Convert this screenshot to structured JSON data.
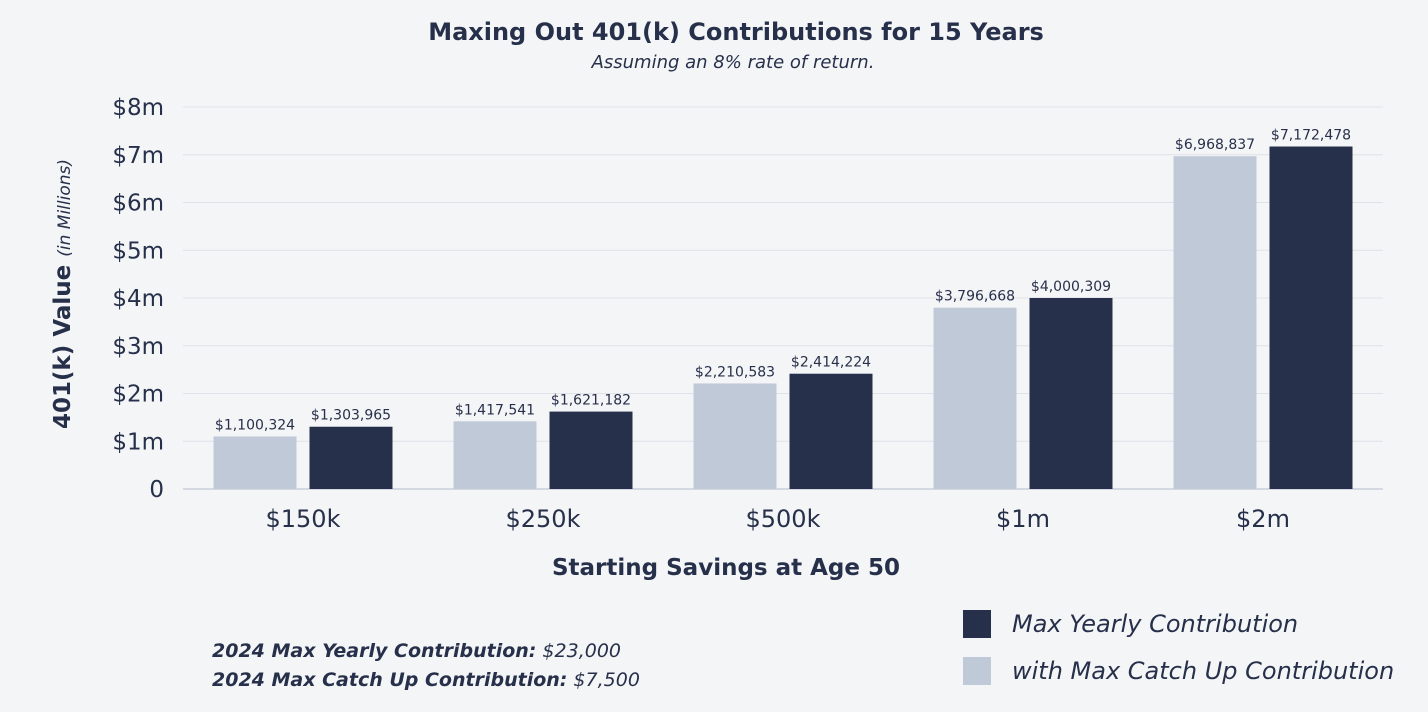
{
  "chart_data": {
    "type": "bar",
    "title": "Maxing Out 401(k) Contributions for 15 Years",
    "subtitle": "Assuming an 8% rate of return.",
    "xlabel": "Starting Savings at Age 50",
    "ylabel": "401(k) Value",
    "ylabel_note": "(in Millions)",
    "categories": [
      "$150k",
      "$250k",
      "$500k",
      "$1m",
      "$2m"
    ],
    "ylim": [
      0,
      8000000
    ],
    "yticks": [
      {
        "value": 0,
        "label": "0"
      },
      {
        "value": 1000000,
        "label": "$1m"
      },
      {
        "value": 2000000,
        "label": "$2m"
      },
      {
        "value": 3000000,
        "label": "$3m"
      },
      {
        "value": 4000000,
        "label": "$4m"
      },
      {
        "value": 5000000,
        "label": "$5m"
      },
      {
        "value": 6000000,
        "label": "$6m"
      },
      {
        "value": 7000000,
        "label": "$7m"
      },
      {
        "value": 8000000,
        "label": "$8m"
      }
    ],
    "grid": true,
    "legend_position": "bottom-right",
    "series": [
      {
        "name": "with Max Catch Up Contribution",
        "color": "#c0c9d8",
        "values": [
          1100324,
          1417541,
          2210583,
          3796668,
          6968837
        ],
        "labels": [
          "$1,100,324",
          "$1,417,541",
          "$2,210,583",
          "$3,796,668",
          "$6,968,837"
        ]
      },
      {
        "name": "Max Yearly Contribution",
        "color": "#27304a",
        "values": [
          1303965,
          1621182,
          2414224,
          4000309,
          7172478
        ],
        "labels": [
          "$1,303,965",
          "$1,621,182",
          "$2,414,224",
          "$4,000,309",
          "$7,172,478"
        ]
      }
    ],
    "legend_order": [
      1,
      0
    ]
  },
  "notes": [
    {
      "label": "2024 Max Yearly Contribution:",
      "value": " $23,000"
    },
    {
      "label": "2024 Max Catch Up Contribution:",
      "value": " $7,500"
    }
  ]
}
